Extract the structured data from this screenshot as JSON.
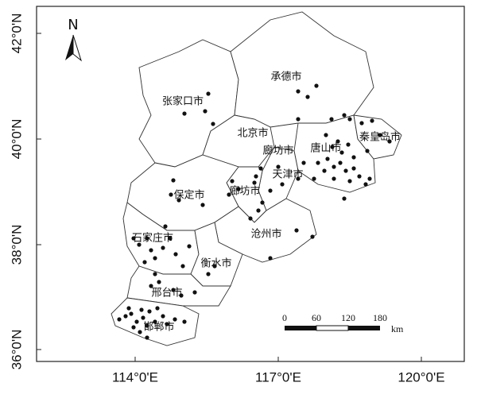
{
  "north": "N",
  "latitude_labels": [
    "42°0'N",
    "40°0'N",
    "38°0'N",
    "36°0'N"
  ],
  "longitude_labels": [
    "114°0'E",
    "117°0'E",
    "120°0'E"
  ],
  "places": [
    "张家口市",
    "承德市",
    "北京市",
    "廊坊市",
    "唐山市",
    "秦皇岛市",
    "天津市",
    "廊坊市",
    "保定市",
    "沧州市",
    "石家庄市",
    "衡水市",
    "邢台市",
    "邯郸市"
  ],
  "scale_bar": {
    "ticks": [
      0,
      60,
      120,
      180
    ],
    "unit": "km"
  }
}
